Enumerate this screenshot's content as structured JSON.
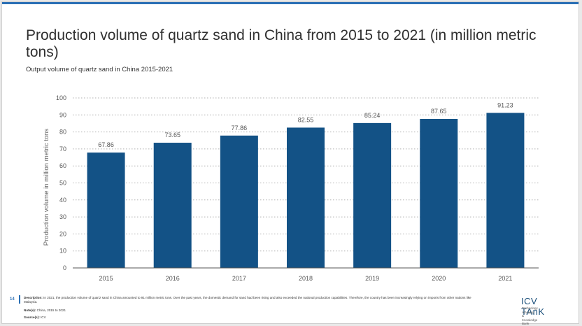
{
  "page": {
    "title": "Production volume of quartz sand in China from 2015 to 2021 (in million metric tons)",
    "subtitle": "Output volume of quartz sand in China 2015-2021",
    "page_number": "14"
  },
  "footer": {
    "description_label": "Description:",
    "description_text": "In 2021, the production volume of quartz sand in China amounted to 91 million metric tons. Over the past years, the domestic demand for sand had been rising and also exceeded the national production capabilities. Therefore, the country has been increasingly relying on imports from other nations like Malaysia.",
    "notes_label": "Note(s):",
    "notes_text": "China, 2015 to 2021",
    "source_label": "Source(s):",
    "source_text": "ICV"
  },
  "logo": {
    "name": "ICV TAnK",
    "tagline_1": "Technology Advisory",
    "tagline_2": "& Knowledge Bank"
  },
  "colors": {
    "bar": "#135286",
    "accent": "#2a6fb5"
  },
  "chart_data": {
    "type": "bar",
    "categories": [
      "2015",
      "2016",
      "2017",
      "2018",
      "2019",
      "2020",
      "2021"
    ],
    "values": [
      67.86,
      73.65,
      77.86,
      82.55,
      85.24,
      87.65,
      91.23
    ],
    "value_labels": [
      "67.86",
      "73.65",
      "77.86",
      "82.55",
      "85.24",
      "87.65",
      "91.23"
    ],
    "xlabel": "",
    "ylabel": "Production volume in million metric tons",
    "ylim": [
      0,
      100
    ],
    "yticks": [
      0,
      10,
      20,
      30,
      40,
      50,
      60,
      70,
      80,
      90,
      100
    ],
    "grid": true,
    "legend": false
  }
}
